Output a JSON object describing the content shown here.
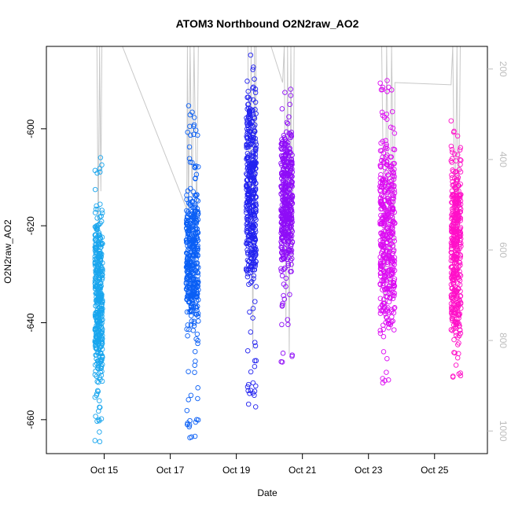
{
  "chart_data": {
    "type": "scatter",
    "title": "ATOM3 Northbound O2N2raw_AO2",
    "xlabel": "Date",
    "ylabel": "O2N2raw_AO2",
    "x_unit": "day of October",
    "xlim": [
      13.25,
      26.6
    ],
    "ylim": [
      -667,
      -583
    ],
    "x_ticks": [
      15,
      17,
      19,
      21,
      23,
      25
    ],
    "x_tick_labels": [
      "Oct 15",
      "Oct 17",
      "Oct 19",
      "Oct 21",
      "Oct 23",
      "Oct 25"
    ],
    "y_ticks": [
      -600,
      -620,
      -640,
      -660
    ],
    "y_tick_labels": [
      "-600",
      "-620",
      "-640",
      "-660"
    ],
    "y2_ticks": [
      200,
      400,
      600,
      800,
      1000
    ],
    "y2_tick_labels": [
      "200",
      "400",
      "600",
      "800",
      "1000"
    ],
    "y2_color": "#bdbdbd",
    "grid": false,
    "legend": "none",
    "marker": "open-circle",
    "clusters": [
      {
        "color": "#1aa6ee",
        "x_start": 14.72,
        "x_end": 14.95,
        "y_center": -637,
        "y_spread": 9,
        "y_min": -665,
        "y_max": -604,
        "dense_range": [
          -655,
          -613
        ]
      },
      {
        "color": "#0a5ff5",
        "x_start": 17.48,
        "x_end": 17.85,
        "y_center": -627,
        "y_spread": 7,
        "y_min": -664,
        "y_max": -595,
        "dense_range": [
          -644,
          -610
        ]
      },
      {
        "color": "#2222f0",
        "x_start": 19.3,
        "x_end": 19.6,
        "y_center": -611,
        "y_spread": 8,
        "y_min": -658,
        "y_max": -584,
        "dense_range": [
          -638,
          -588
        ]
      },
      {
        "color": "#8f0df7",
        "x_start": 20.35,
        "x_end": 20.7,
        "y_center": -611,
        "y_spread": 6,
        "y_min": -649,
        "y_max": -590,
        "dense_range": [
          -636,
          -599
        ]
      },
      {
        "color": "#dc0bf2",
        "x_start": 23.35,
        "x_end": 23.8,
        "y_center": -623,
        "y_spread": 8,
        "y_min": -653,
        "y_max": -590,
        "dense_range": [
          -650,
          -594
        ]
      },
      {
        "color": "#ff10c8",
        "x_start": 25.5,
        "x_end": 25.8,
        "y_center": -622,
        "y_spread": 8,
        "y_min": -653,
        "y_max": -597,
        "dense_range": [
          -652,
          -602
        ]
      }
    ],
    "secondary_series": {
      "color": "#c8c8c8",
      "type": "line",
      "path": [
        [
          14.78,
          150
        ],
        [
          14.82,
          580
        ],
        [
          14.86,
          150
        ],
        [
          14.9,
          470
        ],
        [
          14.93,
          150
        ],
        [
          15.55,
          150
        ],
        [
          17.5,
          510
        ],
        [
          17.52,
          150
        ],
        [
          17.55,
          520
        ],
        [
          17.6,
          150
        ],
        [
          17.66,
          490
        ],
        [
          17.72,
          150
        ],
        [
          17.8,
          540
        ],
        [
          17.85,
          150
        ],
        [
          19.35,
          150
        ],
        [
          19.4,
          560
        ],
        [
          19.45,
          150
        ],
        [
          19.5,
          820
        ],
        [
          19.55,
          150
        ],
        [
          19.58,
          520
        ],
        [
          19.6,
          150
        ],
        [
          20.05,
          150
        ],
        [
          20.4,
          230
        ],
        [
          20.45,
          150
        ],
        [
          20.5,
          760
        ],
        [
          20.55,
          150
        ],
        [
          20.6,
          830
        ],
        [
          20.65,
          150
        ],
        [
          20.7,
          650
        ],
        [
          20.75,
          150
        ],
        [
          23.4,
          150
        ],
        [
          23.5,
          740
        ],
        [
          23.55,
          150
        ],
        [
          23.65,
          700
        ],
        [
          23.7,
          150
        ],
        [
          23.78,
          610
        ],
        [
          23.8,
          230
        ],
        [
          25.5,
          235
        ],
        [
          25.55,
          150
        ],
        [
          25.62,
          560
        ],
        [
          25.68,
          150
        ],
        [
          25.72,
          600
        ],
        [
          25.78,
          150
        ]
      ]
    }
  }
}
